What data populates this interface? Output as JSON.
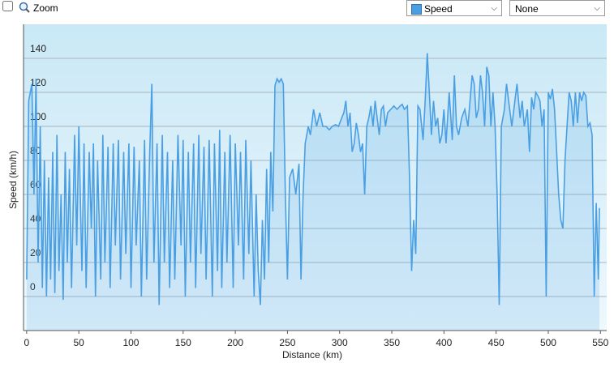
{
  "controls": {
    "zoom": "Zoom",
    "compare": "None"
  },
  "chart_data": {
    "type": "area",
    "y_label": "Speed (km/h)",
    "x_label": "Distance (km)",
    "xlim": [
      -3,
      556
    ],
    "xticks": [
      0,
      50,
      100,
      150,
      200,
      250,
      300,
      350,
      400,
      450,
      500,
      550
    ],
    "ylim": [
      -20,
      160
    ],
    "yticks": [
      0,
      20,
      40,
      60,
      80,
      100,
      120,
      140
    ],
    "grid": true,
    "x": [
      0,
      2,
      5,
      7,
      9,
      11,
      13,
      15,
      17,
      19,
      21,
      23,
      25,
      27,
      29,
      31,
      33,
      35,
      37,
      39,
      41,
      43,
      46,
      48,
      50,
      53,
      55,
      57,
      60,
      62,
      64,
      66,
      68,
      71,
      73,
      75,
      78,
      80,
      83,
      85,
      88,
      90,
      93,
      95,
      98,
      100,
      103,
      105,
      108,
      110,
      113,
      115,
      118,
      120,
      122,
      125,
      127,
      130,
      132,
      135,
      137,
      140,
      142,
      145,
      148,
      150,
      152,
      155,
      157,
      160,
      162,
      165,
      167,
      170,
      172,
      175,
      178,
      180,
      183,
      185,
      187,
      190,
      192,
      195,
      198,
      200,
      203,
      205,
      208,
      210,
      213,
      215,
      218,
      220,
      222,
      224,
      226,
      228,
      230,
      232,
      234,
      236,
      238,
      240,
      242,
      244,
      246,
      248,
      250,
      252,
      255,
      258,
      261,
      263,
      265,
      267,
      270,
      272,
      275,
      278,
      281,
      284,
      287,
      290,
      293,
      296,
      299,
      302,
      304,
      306,
      308,
      310,
      312,
      314,
      316,
      318,
      320,
      322,
      324,
      326,
      328,
      330,
      332,
      334,
      336,
      338,
      340,
      342,
      344,
      346,
      349,
      352,
      355,
      358,
      360,
      362,
      365,
      367,
      369,
      371,
      373,
      375,
      377,
      380,
      382,
      384,
      386,
      388,
      390,
      392,
      394,
      396,
      398,
      400,
      402,
      405,
      408,
      410,
      412,
      414,
      417,
      420,
      423,
      425,
      427,
      429,
      431,
      433,
      435,
      437,
      439,
      441,
      443,
      445,
      447,
      449,
      451,
      453,
      455,
      458,
      460,
      462,
      465,
      468,
      470,
      473,
      475,
      477,
      480,
      482,
      484,
      486,
      488,
      490,
      492,
      494,
      496,
      498,
      500,
      502,
      504,
      506,
      508,
      510,
      512,
      514,
      516,
      518,
      520,
      522,
      524,
      526,
      528,
      530,
      532,
      534,
      536,
      538,
      540,
      542,
      544,
      546,
      548,
      549
    ],
    "series": [
      {
        "name": "Speed",
        "color": "#4a9fe3",
        "values": [
          10,
          115,
          125,
          60,
          128,
          20,
          100,
          5,
          80,
          0,
          70,
          10,
          85,
          2,
          95,
          15,
          60,
          -2,
          85,
          20,
          75,
          5,
          95,
          30,
          100,
          15,
          90,
          5,
          85,
          40,
          90,
          0,
          80,
          10,
          95,
          20,
          88,
          5,
          90,
          30,
          92,
          10,
          85,
          25,
          90,
          5,
          88,
          30,
          80,
          0,
          92,
          10,
          85,
          125,
          20,
          90,
          -5,
          95,
          20,
          85,
          5,
          80,
          10,
          95,
          30,
          92,
          0,
          85,
          20,
          90,
          5,
          95,
          25,
          88,
          10,
          92,
          0,
          90,
          15,
          98,
          5,
          85,
          20,
          95,
          5,
          90,
          30,
          85,
          10,
          92,
          25,
          80,
          0,
          60,
          15,
          -5,
          45,
          10,
          75,
          20,
          85,
          50,
          124,
          128,
          126,
          128,
          125,
          60,
          10,
          70,
          75,
          60,
          78,
          10,
          60,
          90,
          100,
          95,
          110,
          100,
          108,
          100,
          100,
          98,
          100,
          101,
          100,
          105,
          108,
          115,
          100,
          108,
          85,
          90,
          102,
          95,
          85,
          90,
          60,
          100,
          105,
          112,
          100,
          115,
          105,
          95,
          110,
          112,
          100,
          108,
          110,
          112,
          110,
          112,
          113,
          110,
          112,
          70,
          15,
          45,
          25,
          112,
          110,
          92,
          115,
          143,
          120,
          95,
          115,
          100,
          105,
          90,
          95,
          110,
          90,
          120,
          92,
          130,
          100,
          95,
          105,
          110,
          100,
          115,
          130,
          125,
          105,
          110,
          130,
          120,
          100,
          135,
          130,
          100,
          120,
          100,
          60,
          -5,
          100,
          110,
          125,
          115,
          100,
          115,
          125,
          105,
          115,
          100,
          110,
          85,
          117,
          110,
          120,
          118,
          115,
          100,
          110,
          0,
          120,
          116,
          122,
          110,
          85,
          60,
          45,
          40,
          80,
          100,
          120,
          115,
          100,
          120,
          102,
          120,
          115,
          120,
          118,
          100,
          102,
          95,
          0,
          55,
          10,
          52
        ]
      }
    ]
  }
}
